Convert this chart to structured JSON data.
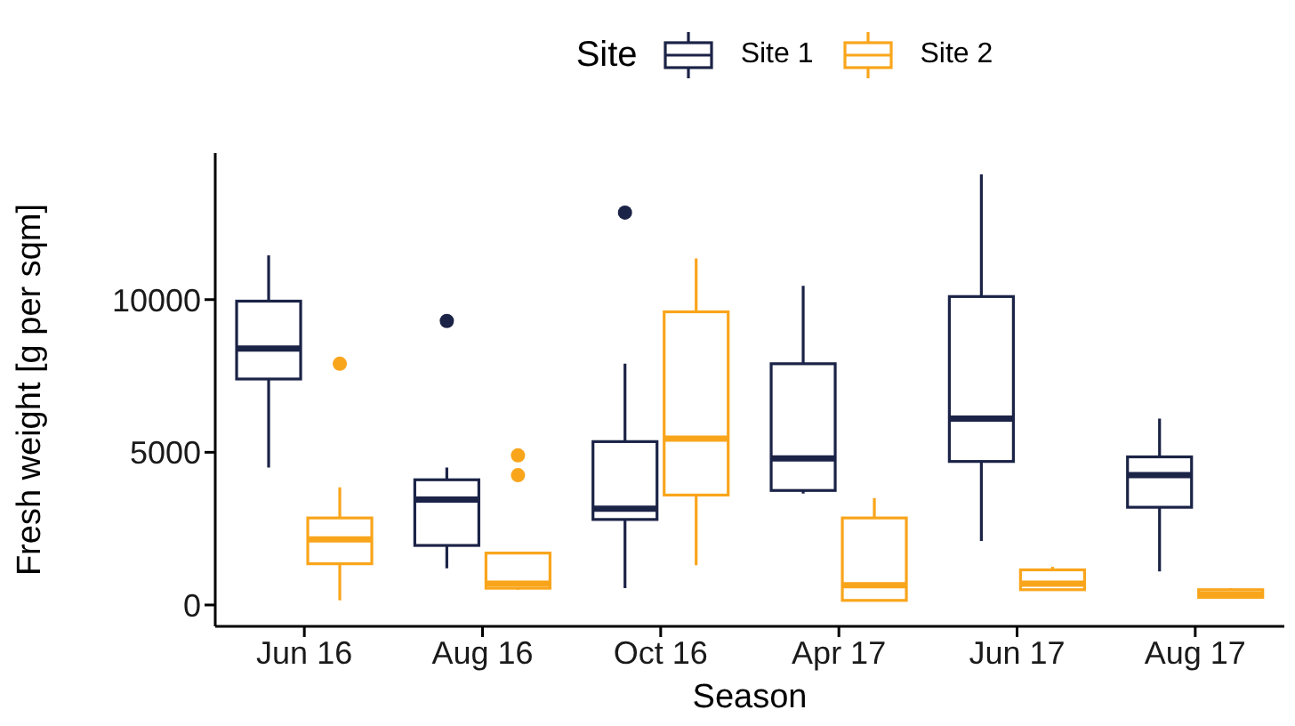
{
  "chart_data": {
    "type": "box",
    "xlabel": "Season",
    "ylabel": "Fresh weight [g per sqm]",
    "legend_title": "Site",
    "legend": "top",
    "categories": [
      "Jun 16",
      "Aug 16",
      "Oct 16",
      "Apr 17",
      "Jun 17",
      "Aug 17"
    ],
    "ylim": [
      -700,
      14800
    ],
    "yticks": [
      0,
      5000,
      10000
    ],
    "series": [
      {
        "name": "Site 1",
        "color": "#1b2347",
        "boxes": [
          {
            "low": 4500,
            "q1": 7400,
            "median": 8400,
            "q3": 9950,
            "high": 11450
          },
          {
            "low": 1200,
            "q1": 1950,
            "median": 3450,
            "q3": 4100,
            "high": 4500,
            "outliers": [
              9300
            ]
          },
          {
            "low": 550,
            "q1": 2800,
            "median": 3150,
            "q3": 5350,
            "high": 7900,
            "outliers": [
              12850
            ]
          },
          {
            "low": 3650,
            "q1": 3750,
            "median": 4800,
            "q3": 7900,
            "high": 10450
          },
          {
            "low": 2100,
            "q1": 4700,
            "median": 6100,
            "q3": 10100,
            "high": 14100
          },
          {
            "low": 1100,
            "q1": 3200,
            "median": 4250,
            "q3": 4850,
            "high": 6100
          }
        ]
      },
      {
        "name": "Site 2",
        "color": "#f9a51b",
        "boxes": [
          {
            "low": 150,
            "q1": 1350,
            "median": 2150,
            "q3": 2850,
            "high": 3850,
            "outliers": [
              7900
            ]
          },
          {
            "low": 500,
            "q1": 550,
            "median": 700,
            "q3": 1700,
            "high": 1700,
            "outliers": [
              4900,
              4250
            ]
          },
          {
            "low": 1300,
            "q1": 3600,
            "median": 5450,
            "q3": 9600,
            "high": 11350
          },
          {
            "low": 150,
            "q1": 150,
            "median": 650,
            "q3": 2850,
            "high": 3500
          },
          {
            "low": 500,
            "q1": 500,
            "median": 700,
            "q3": 1150,
            "high": 1250
          },
          {
            "low": 250,
            "q1": 250,
            "median": 350,
            "q3": 500,
            "high": 550
          }
        ]
      }
    ]
  }
}
